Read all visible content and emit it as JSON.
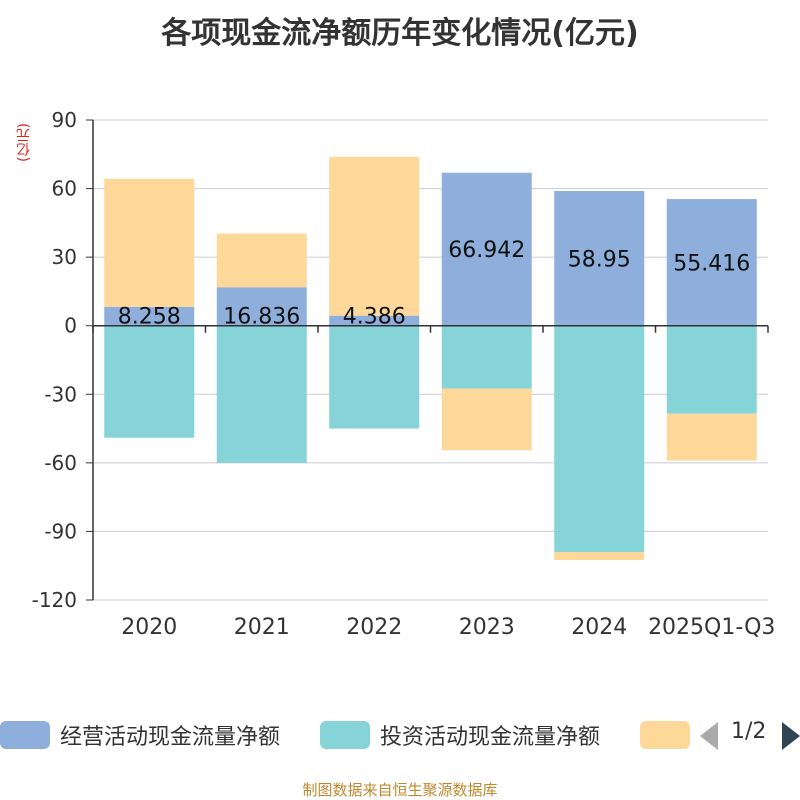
{
  "chart_data": {
    "type": "bar",
    "stacked": true,
    "title": "各项现金流净额历年变化情况(亿元)",
    "ylabel": "(亿元)",
    "xlabel": "",
    "ylim": [
      -120,
      90
    ],
    "yticks": [
      90,
      60,
      30,
      0,
      -30,
      -60,
      -90,
      -120
    ],
    "grid": true,
    "categories": [
      "2020",
      "2021",
      "2022",
      "2023",
      "2024",
      "2025Q1-Q3"
    ],
    "series": [
      {
        "name": "经营活动现金流量净额",
        "color": "#8eaedb",
        "values": [
          8.258,
          16.836,
          4.386,
          66.942,
          58.95,
          55.416
        ],
        "labels": [
          "8.258",
          "16.836",
          "4.386",
          "66.942",
          "58.95",
          "55.416"
        ]
      },
      {
        "name": "投资活动现金流量净额",
        "color": "#86d4d8",
        "values": [
          -49.0,
          -60.0,
          -45.0,
          -27.5,
          -99.0,
          -38.5
        ]
      },
      {
        "name": "",
        "color": "#fed899",
        "values": [
          56.0,
          23.5,
          69.5,
          -27.0,
          -3.5,
          -20.5
        ]
      }
    ]
  },
  "legend": {
    "items": [
      {
        "label": "经营活动现金流量净额",
        "color": "#8eaedb"
      },
      {
        "label": "投资活动现金流量净额",
        "color": "#86d4d8"
      },
      {
        "label": "",
        "color": "#fed899"
      }
    ],
    "page": "1/2"
  },
  "source": "制图数据来自恒生聚源数据库"
}
